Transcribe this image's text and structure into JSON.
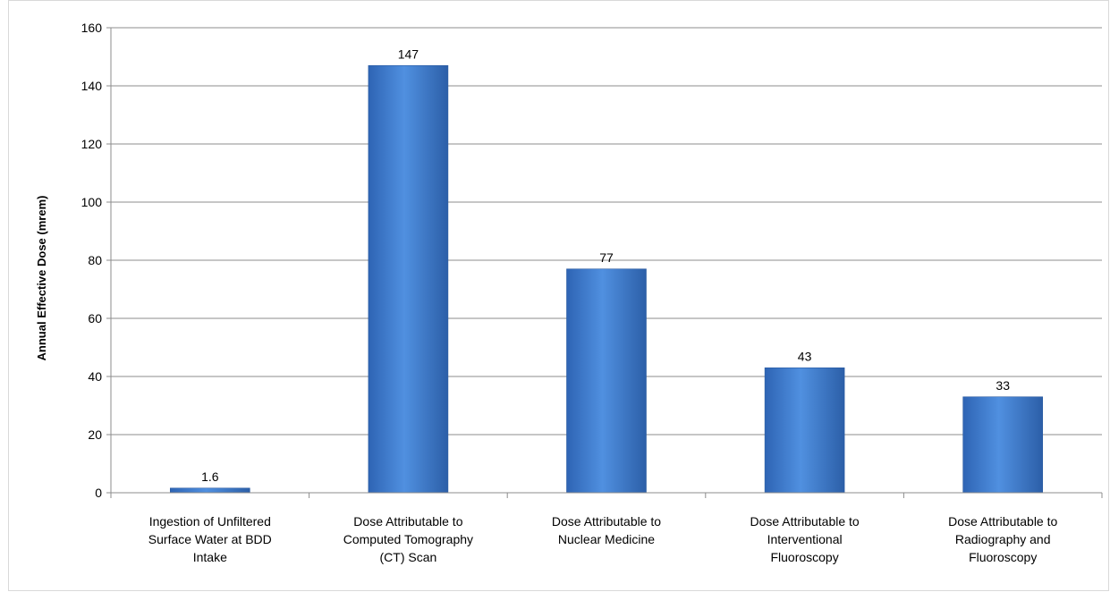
{
  "chart_data": {
    "type": "bar",
    "title": "",
    "xlabel": "",
    "ylabel": "Annual Effective Dose (mrem)",
    "ylim": [
      0,
      160
    ],
    "yticks": [
      0,
      20,
      40,
      60,
      80,
      100,
      120,
      140,
      160
    ],
    "grid": true,
    "legend": "none",
    "bar_color": "#4a86d6",
    "categories": [
      [
        "Ingestion of Unfiltered",
        "Surface Water at BDD",
        "Intake"
      ],
      [
        "Dose Attributable to",
        "Computed Tomography",
        "(CT) Scan"
      ],
      [
        "Dose Attributable to",
        "Nuclear Medicine"
      ],
      [
        "Dose Attributable to",
        "Interventional",
        "Fluoroscopy"
      ],
      [
        "Dose Attributable to",
        "Radiography and",
        "Fluoroscopy"
      ]
    ],
    "values": [
      1.6,
      147,
      77,
      43,
      33
    ],
    "data_labels": [
      "1.6",
      "147",
      "77",
      "43",
      "33"
    ]
  }
}
